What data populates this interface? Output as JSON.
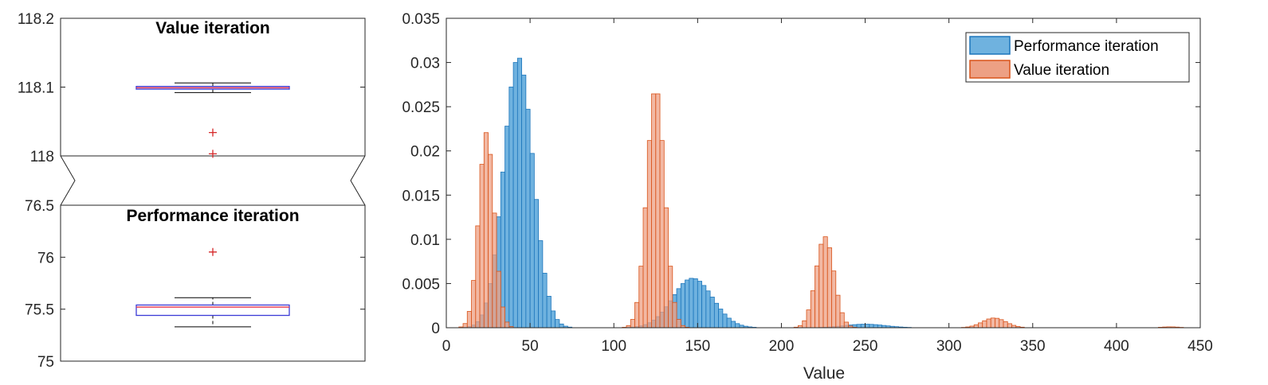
{
  "chart_data": [
    {
      "type": "box",
      "panel": "broken-axis",
      "upper": {
        "title": "Value iteration",
        "ylim": [
          118,
          118.2
        ],
        "yticks": [
          "118",
          "118.1",
          "118.2"
        ],
        "box": {
          "q1": 118.097,
          "median": 118.099,
          "q3": 118.101,
          "whisker_low": 118.092,
          "whisker_high": 118.106
        },
        "outliers": [
          118.034,
          118.003
        ]
      },
      "lower": {
        "title": "Performance iteration",
        "ylim": [
          75,
          76.5
        ],
        "yticks": [
          "75",
          "75.5",
          "76",
          "76.5"
        ],
        "box": {
          "q1": 75.44,
          "median": 75.52,
          "q3": 75.54,
          "whisker_low": 75.33,
          "whisker_high": 75.61
        },
        "outliers": [
          76.05
        ]
      },
      "colors": {
        "box": "#3b3bd6",
        "median": "#e8344a",
        "whisker": "#000000",
        "outlier": "#d62728"
      }
    },
    {
      "type": "histogram",
      "xlabel": "Value",
      "xlim": [
        0,
        450
      ],
      "ylim": [
        0,
        0.035
      ],
      "xticks": [
        "0",
        "50",
        "100",
        "150",
        "200",
        "250",
        "300",
        "350",
        "400",
        "450"
      ],
      "yticks": [
        "0",
        "0.005",
        "0.01",
        "0.015",
        "0.02",
        "0.025",
        "0.03",
        "0.035"
      ],
      "legend_position": "top-right",
      "bin_width": 2.5,
      "series": [
        {
          "name": "Performance iteration",
          "fill": "#6fb2df",
          "stroke": "#1b75bb",
          "peaks": [
            {
              "center": 43,
              "sigma": 8.8,
              "height": 0.0306
            },
            {
              "center": 147,
              "sigma": 12,
              "height": 0.0056
            },
            {
              "center": 250,
              "sigma": 12,
              "height": 0.0004
            }
          ]
        },
        {
          "name": "Value iteration",
          "fill": "#eda084",
          "stroke": "#d95319",
          "peaks": [
            {
              "center": 24,
              "sigma": 4.6,
              "height": 0.0221
            },
            {
              "center": 125,
              "sigma": 5.3,
              "height": 0.0272
            },
            {
              "center": 226,
              "sigma": 5.4,
              "height": 0.0103
            },
            {
              "center": 327,
              "sigma": 7,
              "height": 0.0011
            },
            {
              "center": 432,
              "sigma": 5,
              "height": 0.0001
            }
          ]
        }
      ]
    }
  ]
}
